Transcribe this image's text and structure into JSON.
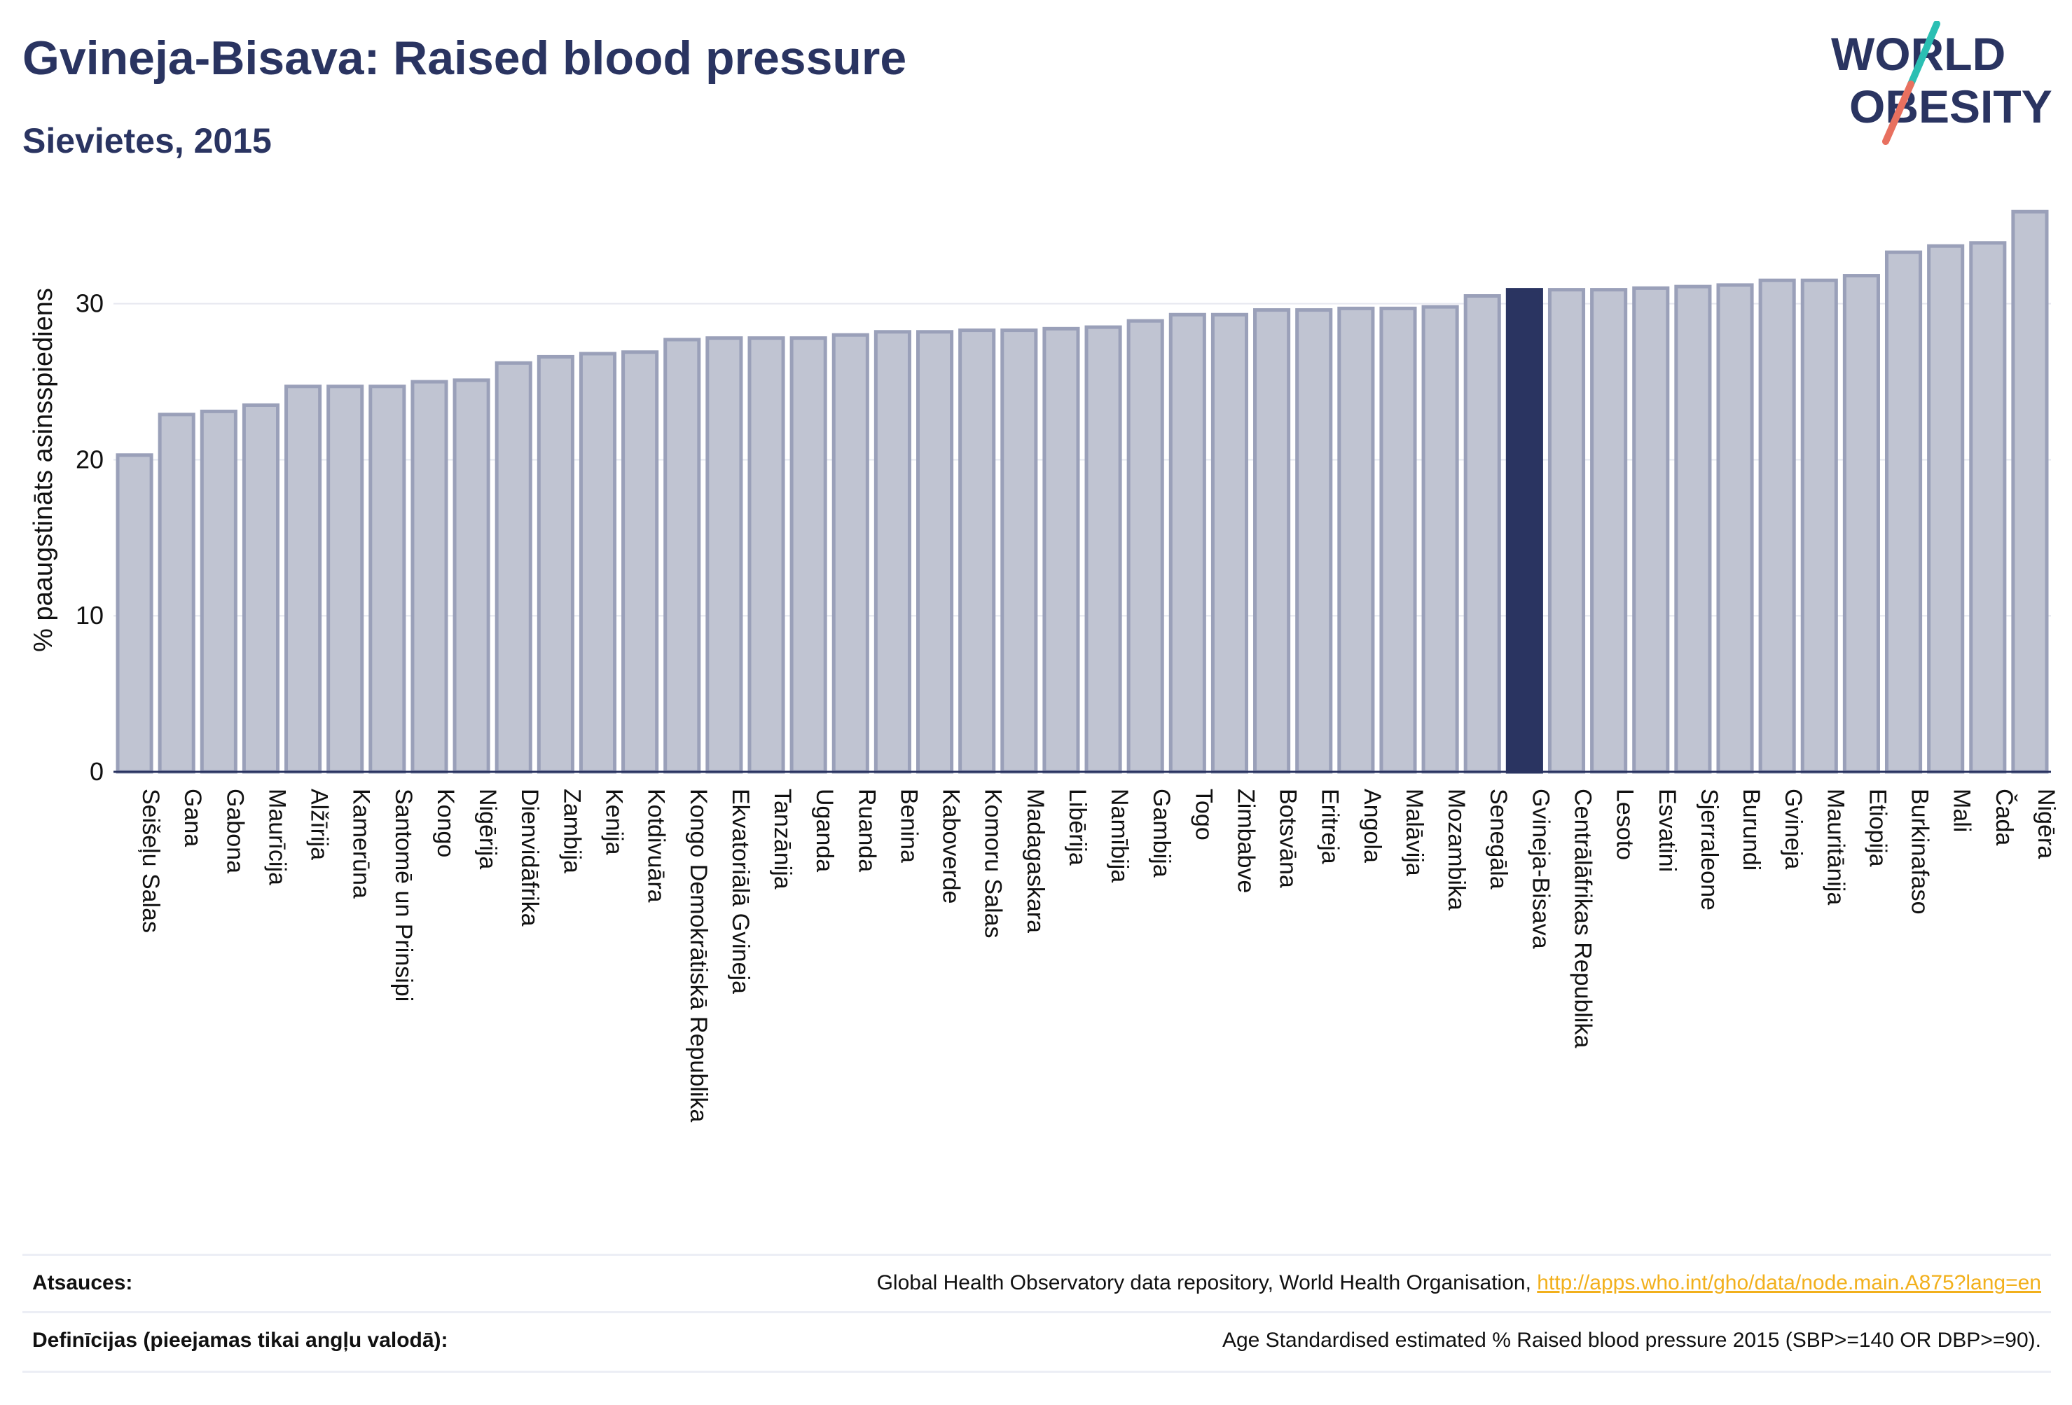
{
  "header": {
    "title": "Gvineja-Bisava: Raised blood pressure",
    "subtitle": "Sievietes, 2015"
  },
  "logo": {
    "line1": "WORLD",
    "line2": "OBESITY",
    "colors": {
      "text": "#2a3461",
      "teal": "#2bbfb3",
      "coral": "#e8705f"
    }
  },
  "chart_data": {
    "type": "bar",
    "ylabel": "% paaugstināts asinsspiediens",
    "xlabel": "",
    "ylim": [
      0,
      36
    ],
    "yticks": [
      0,
      10,
      20,
      30
    ],
    "grid": true,
    "highlight": "Gvineja-Bisava",
    "colors": {
      "bar": "#c0c4d2",
      "bar_border": "#9aa0b9",
      "highlight": "#2a3461",
      "axis": "#2a3461",
      "grid": "#e6e8ef"
    },
    "categories": [
      "Seišeļu Salas",
      "Gana",
      "Gabona",
      "Maurīcija",
      "Alžīrija",
      "Kamerūna",
      "Santomē un Prinsipi",
      "Kongo",
      "Nigērija",
      "Dienvidāfrika",
      "Zambija",
      "Kenija",
      "Kotdivuāra",
      "Kongo Demokrātiskā Republika",
      "Ekvatoriālā Gvineja",
      "Tanzānija",
      "Uganda",
      "Ruanda",
      "Benina",
      "Kaboverde",
      "Komoru Salas",
      "Madagaskara",
      "Libērija",
      "Namībija",
      "Gambija",
      "Togo",
      "Zimbabve",
      "Botsvāna",
      "Eritreja",
      "Angola",
      "Malāvija",
      "Mozambika",
      "Senegāla",
      "Gvineja-Bisava",
      "Centrālāfrikas Republika",
      "Lesoto",
      "Esvatini",
      "Sjerraleone",
      "Burundi",
      "Gvineja",
      "Mauritānija",
      "Etiopija",
      "Burkinafaso",
      "Mali",
      "Čada",
      "Nigēra"
    ],
    "values": [
      20.3,
      22.9,
      23.1,
      23.5,
      24.7,
      24.7,
      24.7,
      25.0,
      25.1,
      26.2,
      26.6,
      26.8,
      26.9,
      27.7,
      27.8,
      27.8,
      27.8,
      28.0,
      28.2,
      28.2,
      28.3,
      28.3,
      28.4,
      28.5,
      28.9,
      29.3,
      29.3,
      29.6,
      29.6,
      29.7,
      29.7,
      29.8,
      30.5,
      30.9,
      30.9,
      30.9,
      31.0,
      31.1,
      31.2,
      31.5,
      31.5,
      31.8,
      33.3,
      33.7,
      33.9,
      35.9
    ]
  },
  "footer": {
    "sources_label": "Atsauces:",
    "sources_text": "Global Health Observatory data repository, World Health Organisation,",
    "sources_link": "http://apps.who.int/gho/data/node.main.A875?lang=en",
    "definitions_label": "Definīcijas (pieejamas tikai angļu valodā):",
    "definitions_text": "Age Standardised estimated % Raised blood pressure 2015 (SBP>=140 OR DBP>=90)."
  }
}
